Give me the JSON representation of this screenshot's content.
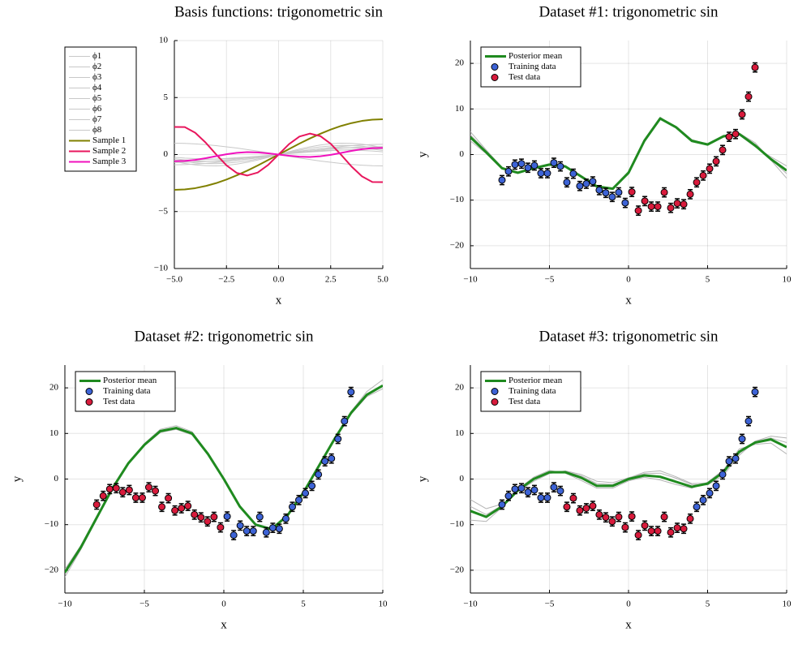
{
  "chart_data": [
    {
      "type": "line",
      "title": "Basis functions: trigonometric sin",
      "xlabel": "x",
      "x": [
        -5,
        -4.5,
        -4,
        -3.5,
        -3,
        -2.5,
        -2,
        -1.5,
        -1,
        -0.5,
        0,
        0.5,
        1,
        1.5,
        2,
        2.5,
        3,
        3.5,
        4,
        4.5,
        5
      ],
      "xlim": [
        -5,
        5
      ],
      "xticks": [
        {
          "value": -5,
          "label": "−5.0"
        },
        {
          "value": -2.5,
          "label": "−2.5"
        },
        {
          "value": 0,
          "label": "0.0"
        },
        2.5,
        {
          "value": 5,
          "label": "5.0"
        }
      ],
      "ylim": [
        -10,
        10
      ],
      "yticks": [
        {
          "value": -10,
          "label": "−10"
        },
        {
          "value": -5,
          "label": "−5"
        },
        0,
        5,
        10
      ],
      "grid": true,
      "legend": "left-outside",
      "series": [
        {
          "name": "ϕ1",
          "color": "#c8c8c8",
          "values": [
            -0.9,
            -0.88,
            -0.84,
            -0.78,
            -0.7,
            -0.61,
            -0.51,
            -0.39,
            -0.27,
            -0.13,
            0,
            0.13,
            0.27,
            0.39,
            0.51,
            0.61,
            0.7,
            0.78,
            0.84,
            0.88,
            0.9
          ]
        },
        {
          "name": "ϕ2",
          "color": "#c8c8c8",
          "values": [
            -0.7,
            -0.68,
            -0.65,
            -0.61,
            -0.55,
            -0.48,
            -0.4,
            -0.3,
            -0.21,
            -0.1,
            0,
            0.1,
            0.21,
            0.3,
            0.4,
            0.48,
            0.55,
            0.61,
            0.65,
            0.68,
            0.7
          ]
        },
        {
          "name": "ϕ3",
          "color": "#c8c8c8",
          "values": [
            -0.5,
            -0.49,
            -0.47,
            -0.43,
            -0.39,
            -0.34,
            -0.28,
            -0.22,
            -0.15,
            -0.07,
            0,
            0.07,
            0.15,
            0.22,
            0.28,
            0.34,
            0.39,
            0.43,
            0.47,
            0.49,
            0.5
          ]
        },
        {
          "name": "ϕ4",
          "color": "#c8c8c8",
          "values": [
            1,
            0.98,
            0.93,
            0.87,
            0.78,
            0.68,
            0.57,
            0.44,
            0.3,
            0.15,
            0,
            -0.15,
            -0.3,
            -0.44,
            -0.57,
            -0.68,
            -0.78,
            -0.87,
            -0.93,
            -0.98,
            -1
          ]
        },
        {
          "name": "ϕ5",
          "color": "#c8c8c8",
          "values": [
            -0.48,
            -0.62,
            -0.73,
            -0.79,
            -0.8,
            -0.76,
            -0.67,
            -0.55,
            -0.38,
            -0.2,
            0,
            0.2,
            0.38,
            0.55,
            0.67,
            0.76,
            0.8,
            0.79,
            0.73,
            0.62,
            0.48
          ]
        },
        {
          "name": "ϕ6",
          "color": "#c8c8c8",
          "values": [
            -0.36,
            -0.47,
            -0.55,
            -0.59,
            -0.6,
            -0.57,
            -0.5,
            -0.41,
            -0.29,
            -0.15,
            0,
            0.15,
            0.29,
            0.41,
            0.5,
            0.57,
            0.6,
            0.59,
            0.55,
            0.47,
            0.36
          ]
        },
        {
          "name": "ϕ7",
          "color": "#c8c8c8",
          "values": [
            -0.24,
            -0.31,
            -0.36,
            -0.39,
            -0.4,
            -0.38,
            -0.34,
            -0.27,
            -0.19,
            -0.1,
            0,
            0.1,
            0.19,
            0.27,
            0.34,
            0.38,
            0.4,
            0.39,
            0.36,
            0.31,
            0.24
          ]
        },
        {
          "name": "ϕ8",
          "color": "#c8c8c8",
          "values": [
            -0.6,
            -0.78,
            -0.91,
            -0.98,
            -1,
            -0.95,
            -0.84,
            -0.68,
            -0.48,
            -0.25,
            0,
            0.25,
            0.48,
            0.68,
            0.84,
            0.95,
            1,
            0.98,
            0.91,
            0.78,
            0.6
          ]
        },
        {
          "name": "Sample 1",
          "color": "#808000",
          "width": 2,
          "values": [
            -3.1,
            -3.06,
            -2.95,
            -2.76,
            -2.51,
            -2.19,
            -1.82,
            -1.41,
            -0.96,
            -0.48,
            0,
            0.48,
            0.96,
            1.41,
            1.82,
            2.19,
            2.51,
            2.76,
            2.95,
            3.06,
            3.1
          ]
        },
        {
          "name": "Sample 2",
          "color": "#e8175d",
          "width": 2,
          "values": [
            2.42,
            2.41,
            1.91,
            1.05,
            0.02,
            -0.95,
            -1.62,
            -1.84,
            -1.58,
            -0.91,
            0,
            0.91,
            1.58,
            1.84,
            1.62,
            0.95,
            -0.02,
            -1.05,
            -1.91,
            -2.41,
            -2.42
          ]
        },
        {
          "name": "Sample 3",
          "color": "#f012be",
          "width": 2,
          "values": [
            -0.59,
            -0.56,
            -0.47,
            -0.32,
            -0.14,
            0.03,
            0.15,
            0.21,
            0.19,
            0.11,
            0,
            -0.11,
            -0.19,
            -0.21,
            -0.15,
            -0.03,
            0.14,
            0.32,
            0.47,
            0.56,
            0.59
          ]
        }
      ]
    },
    {
      "type": "scatter",
      "title": "Dataset #1: trigonometric sin",
      "xlabel": "x",
      "ylabel": "y",
      "x": [
        -10,
        -9,
        -8,
        -7,
        -6,
        -5,
        -4,
        -3,
        -2,
        -1,
        0,
        1,
        2,
        3,
        4,
        5,
        6,
        7,
        8,
        9,
        10
      ],
      "xlim": [
        -10,
        10
      ],
      "xticks": [
        {
          "value": -10,
          "label": "−10"
        },
        {
          "value": -5,
          "label": "−5"
        },
        0,
        5,
        10
      ],
      "ylim": [
        -25,
        25
      ],
      "yticks": [
        {
          "value": -20,
          "label": "−20"
        },
        {
          "value": -10,
          "label": "−10"
        },
        0,
        10,
        20
      ],
      "grid": true,
      "legend": "top-left",
      "series": [
        {
          "color": "#b4b4b4",
          "values": [
            5,
            1,
            -2.8,
            -4,
            -3.1,
            -2.3,
            -2.5,
            -4.6,
            -6.8,
            -7.6,
            -4.3,
            2.7,
            7.7,
            6.2,
            3.3,
            2.3,
            3.8,
            4.7,
            2.6,
            -1.2,
            -5.2
          ]
        },
        {
          "color": "#b4b4b4",
          "values": [
            3,
            0.2,
            -3.2,
            -3.9,
            -2.9,
            -2.1,
            -2.7,
            -5,
            -7.2,
            -7.3,
            -3.7,
            3.3,
            8.2,
            5.8,
            2.8,
            2.1,
            4.2,
            4.3,
            1.7,
            -0.5,
            -2.5
          ]
        },
        {
          "color": "#b4b4b4",
          "values": [
            4.3,
            0.8,
            -3,
            -4.1,
            -3,
            -2.2,
            -2.6,
            -4.7,
            -7.1,
            -7.6,
            -4.1,
            2.9,
            7.8,
            6.1,
            3,
            2.4,
            4.1,
            4.4,
            2.1,
            -1,
            -4.2
          ]
        },
        {
          "name": "Posterior mean",
          "color": "#1f8a1f",
          "width": 3,
          "values": [
            3.8,
            0.5,
            -3,
            -4,
            -3,
            -2.2,
            -2.6,
            -4.8,
            -7,
            -7.5,
            -4,
            3,
            7.9,
            6,
            3,
            2.2,
            4,
            4.5,
            2,
            -1,
            -3.5
          ]
        },
        {
          "name": "Training data",
          "color": "#3d63d6",
          "yerr": 1,
          "x": [
            -8,
            -7.59,
            -7.18,
            -6.77,
            -6.36,
            -5.95,
            -5.54,
            -5.13,
            -4.72,
            -4.31,
            -3.9,
            -3.49,
            -3.08,
            -2.67,
            -2.26,
            -1.85,
            -1.44,
            -1.03,
            -0.62,
            -0.21
          ],
          "values": [
            -5.6,
            -3.7,
            -2.2,
            -2,
            -2.9,
            -2.4,
            -4.1,
            -4.1,
            -1.8,
            -2.6,
            -6.1,
            -4.2,
            -6.9,
            -6.4,
            -5.9,
            -7.8,
            -8.4,
            -9.3,
            -8.3,
            -10.6
          ]
        },
        {
          "name": "Test data",
          "color": "#d81b3c",
          "yerr": 1,
          "x": [
            0.21,
            0.62,
            1.03,
            1.44,
            1.85,
            2.26,
            2.67,
            3.08,
            3.49,
            3.9,
            4.31,
            4.72,
            5.13,
            5.54,
            5.95,
            6.36,
            6.77,
            7.18,
            7.59,
            8
          ],
          "values": [
            -8.2,
            -12.3,
            -10.2,
            -11.4,
            -11.4,
            -8.3,
            -11.7,
            -10.7,
            -10.9,
            -8.7,
            -6.1,
            -4.6,
            -3.1,
            -1.5,
            1,
            3.9,
            4.5,
            8.8,
            12.7,
            19.1
          ]
        }
      ]
    },
    {
      "type": "scatter",
      "title": "Dataset #2: trigonometric sin",
      "xlabel": "x",
      "ylabel": "y",
      "x": [
        -10,
        -9,
        -8,
        -7,
        -6,
        -5,
        -4,
        -3,
        -2,
        -1,
        0,
        1,
        2,
        3,
        4,
        5,
        6,
        7,
        8,
        9,
        10
      ],
      "xlim": [
        -10,
        10
      ],
      "xticks": [
        {
          "value": -10,
          "label": "−10"
        },
        {
          "value": -5,
          "label": "−5"
        },
        0,
        5,
        10
      ],
      "ylim": [
        -25,
        25
      ],
      "yticks": [
        {
          "value": -20,
          "label": "−20"
        },
        {
          "value": -10,
          "label": "−10"
        },
        0,
        10,
        20
      ],
      "grid": true,
      "legend": "top-left",
      "series": [
        {
          "color": "#b4b4b4",
          "values": [
            -21.5,
            -15.5,
            -8.8,
            -2.1,
            3.6,
            7.8,
            10.9,
            11.7,
            10.4,
            5.7,
            0.1,
            -6,
            -10.2,
            -11.2,
            -8.1,
            -3,
            3.1,
            9.2,
            14.8,
            19.2,
            21.8
          ]
        },
        {
          "color": "#b4b4b4",
          "values": [
            -19.8,
            -14.6,
            -8.2,
            -1.8,
            3.4,
            7.3,
            10.2,
            10.9,
            9.7,
            5.3,
            -0.1,
            -6.1,
            -9.9,
            -10.8,
            -7.9,
            -2.9,
            3,
            8.9,
            14.2,
            18.1,
            19.8
          ]
        },
        {
          "name": "Posterior mean",
          "color": "#1f8a1f",
          "width": 3,
          "values": [
            -20.5,
            -15,
            -8.5,
            -2,
            3.5,
            7.5,
            10.5,
            11.2,
            10,
            5.5,
            0,
            -6,
            -10,
            -11,
            -8,
            -3,
            3,
            9,
            14.5,
            18.5,
            20.5
          ]
        },
        {
          "name": "Training data",
          "color": "#3d63d6",
          "yerr": 1,
          "x": [
            0.21,
            0.62,
            1.03,
            1.44,
            1.85,
            2.26,
            2.67,
            3.08,
            3.49,
            3.9,
            4.31,
            4.72,
            5.13,
            5.54,
            5.95,
            6.36,
            6.77,
            7.18,
            7.59,
            8
          ],
          "values": [
            -8.2,
            -12.3,
            -10.2,
            -11.4,
            -11.4,
            -8.3,
            -11.7,
            -10.7,
            -10.9,
            -8.7,
            -6.1,
            -4.6,
            -3.1,
            -1.5,
            1,
            3.9,
            4.5,
            8.8,
            12.7,
            19.1
          ]
        },
        {
          "name": "Test data",
          "color": "#d81b3c",
          "yerr": 1,
          "x": [
            -8,
            -7.59,
            -7.18,
            -6.77,
            -6.36,
            -5.95,
            -5.54,
            -5.13,
            -4.72,
            -4.31,
            -3.9,
            -3.49,
            -3.08,
            -2.67,
            -2.26,
            -1.85,
            -1.44,
            -1.03,
            -0.62,
            -0.21
          ],
          "values": [
            -5.6,
            -3.7,
            -2.2,
            -2,
            -2.9,
            -2.4,
            -4.1,
            -4.1,
            -1.8,
            -2.6,
            -6.1,
            -4.2,
            -6.9,
            -6.4,
            -5.9,
            -7.8,
            -8.4,
            -9.3,
            -8.3,
            -10.6
          ]
        }
      ]
    },
    {
      "type": "scatter",
      "title": "Dataset #3: trigonometric sin",
      "xlabel": "x",
      "ylabel": "y",
      "x": [
        -10,
        -9,
        -8,
        -7,
        -6,
        -5,
        -4,
        -3,
        -2,
        -1,
        0,
        1,
        2,
        3,
        4,
        5,
        6,
        7,
        8,
        9,
        10
      ],
      "xlim": [
        -10,
        10
      ],
      "xticks": [
        {
          "value": -10,
          "label": "−10"
        },
        {
          "value": -5,
          "label": "−5"
        },
        0,
        5,
        10
      ],
      "ylim": [
        -25,
        25
      ],
      "yticks": [
        {
          "value": -20,
          "label": "−20"
        },
        {
          "value": -10,
          "label": "−10"
        },
        0,
        10,
        20
      ],
      "grid": true,
      "legend": "top-left",
      "series": [
        {
          "color": "#b4b4b4",
          "values": [
            -4.5,
            -6.5,
            -5.5,
            -2.8,
            -0.5,
            1.2,
            1.8,
            1,
            -0.5,
            -0.8,
            0.3,
            1.2,
            1.3,
            0.2,
            -1.2,
            -1.3,
            0.8,
            5.2,
            8.3,
            9.4,
            9
          ]
        },
        {
          "color": "#b4b4b4",
          "values": [
            -9,
            -9.3,
            -6.2,
            -2.2,
            0.4,
            1.9,
            1.3,
            -0.3,
            -2,
            -2,
            -0.4,
            0.4,
            -0.2,
            -1.2,
            -2,
            -0.7,
            2,
            6.6,
            7.6,
            7.9,
            5.5
          ]
        },
        {
          "color": "#b4b4b4",
          "values": [
            -6,
            -7.8,
            -5.8,
            -2.4,
            0.1,
            1.6,
            1.7,
            0.7,
            -1,
            -1.2,
            0.2,
            1.5,
            1.8,
            0.5,
            -1,
            -0.9,
            1.3,
            5.6,
            8.2,
            9,
            8
          ]
        },
        {
          "name": "Posterior mean",
          "color": "#1f8a1f",
          "width": 3,
          "values": [
            -7,
            -8.3,
            -6,
            -2.5,
            0,
            1.5,
            1.5,
            0.3,
            -1.5,
            -1.5,
            0,
            0.8,
            0.5,
            -0.6,
            -1.7,
            -1,
            1.5,
            6,
            8,
            8.7,
            7
          ]
        },
        {
          "name": "Training data",
          "color": "#3d63d6",
          "yerr": 1,
          "x": [
            -8,
            -7.59,
            -7.18,
            -6.77,
            -6.36,
            -5.95,
            -5.54,
            -5.13,
            -4.72,
            -4.31,
            4.31,
            4.72,
            5.13,
            5.54,
            5.95,
            6.36,
            6.77,
            7.18,
            7.59,
            8
          ],
          "values": [
            -5.6,
            -3.7,
            -2.2,
            -2,
            -2.9,
            -2.4,
            -4.1,
            -4.1,
            -1.8,
            -2.6,
            -6.1,
            -4.6,
            -3.1,
            -1.5,
            1,
            3.9,
            4.5,
            8.8,
            12.7,
            19.1
          ]
        },
        {
          "name": "Test data",
          "color": "#d81b3c",
          "yerr": 1,
          "x": [
            -3.9,
            -3.49,
            -3.08,
            -2.67,
            -2.26,
            -1.85,
            -1.44,
            -1.03,
            -0.62,
            -0.21,
            0.21,
            0.62,
            1.03,
            1.44,
            1.85,
            2.26,
            2.67,
            3.08,
            3.49,
            3.9
          ],
          "values": [
            -6.1,
            -4.2,
            -6.9,
            -6.4,
            -5.9,
            -7.8,
            -8.4,
            -9.3,
            -8.3,
            -10.6,
            -8.2,
            -12.3,
            -10.2,
            -11.4,
            -11.4,
            -8.3,
            -11.7,
            -10.7,
            -10.9,
            -8.7
          ]
        }
      ]
    }
  ]
}
